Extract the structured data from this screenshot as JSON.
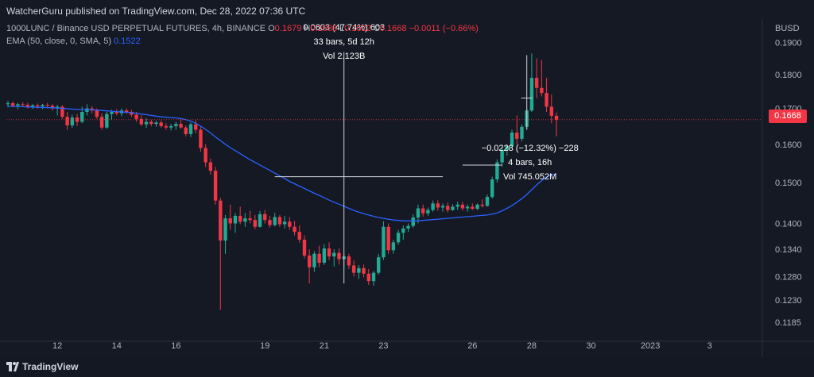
{
  "header": {
    "published": "WatcherGuru published on TradingView.com, Dec 28, 2022 07:36 UTC",
    "symbol": "1000LUNC / Binance USD PERPETUAL FUTURES, 4h, BINANCE",
    "ohlc": {
      "o_label": "O",
      "o": "0.1679",
      "h_label": "H",
      "h": "0.1688",
      "l_label": "L",
      "l": "0.1622",
      "c_label": "C",
      "c": "0.1668",
      "change": "−0.0011 (−0.66%)"
    },
    "ema_label": "EMA (50, close, 0, SMA, 5)",
    "ema_value": "0.1522",
    "currency": "BUSD"
  },
  "last_price": "0.1668",
  "colors": {
    "up": "#22ab94",
    "down": "#f23645",
    "ema": "#2962ff",
    "background": "#151924",
    "text": "#b2b5be"
  },
  "footer": {
    "brand": "TradingView",
    "logo_icon": "tradingview-logo-icon"
  },
  "measures": [
    {
      "lines": [
        "0.0603 (47.74%) 603",
        "33 bars, 5d 12h",
        "Vol 2.123B"
      ]
    },
    {
      "lines": [
        "−0.0228 (−12.32%) −228",
        "4 bars, 16h",
        "Vol 745.052M"
      ]
    }
  ],
  "chart_data": {
    "type": "candlestick",
    "timeframe": "4h",
    "x_ticks": [
      "12",
      "14",
      "16",
      "19",
      "21",
      "23",
      "26",
      "28",
      "30",
      "2023",
      "3"
    ],
    "y_ticks": [
      "0.1900",
      "0.1800",
      "0.1700",
      "0.1600",
      "0.1500",
      "0.1400",
      "0.1340",
      "0.1280",
      "0.1230",
      "0.1185"
    ],
    "y_scale": "log",
    "ylim": [
      0.1155,
      0.1935
    ],
    "grid": false,
    "candles": [
      [
        0.1712,
        0.1722,
        0.1703,
        0.1715
      ],
      [
        0.1715,
        0.172,
        0.1703,
        0.1708
      ],
      [
        0.1708,
        0.1716,
        0.1698,
        0.1712
      ],
      [
        0.1712,
        0.1718,
        0.1704,
        0.171
      ],
      [
        0.171,
        0.1716,
        0.17,
        0.1704
      ],
      [
        0.1704,
        0.1712,
        0.1698,
        0.1709
      ],
      [
        0.1709,
        0.1714,
        0.17,
        0.1706
      ],
      [
        0.1706,
        0.1713,
        0.1698,
        0.171
      ],
      [
        0.171,
        0.1716,
        0.1702,
        0.1708
      ],
      [
        0.1708,
        0.1712,
        0.1694,
        0.17
      ],
      [
        0.17,
        0.171,
        0.168,
        0.1705
      ],
      [
        0.1705,
        0.1709,
        0.167,
        0.1676
      ],
      [
        0.1676,
        0.169,
        0.164,
        0.1652
      ],
      [
        0.1652,
        0.1682,
        0.1645,
        0.1674
      ],
      [
        0.1674,
        0.1684,
        0.165,
        0.1662
      ],
      [
        0.1662,
        0.1705,
        0.1658,
        0.169
      ],
      [
        0.169,
        0.1712,
        0.168,
        0.17
      ],
      [
        0.17,
        0.1706,
        0.1686,
        0.1694
      ],
      [
        0.1694,
        0.17,
        0.167,
        0.1676
      ],
      [
        0.1676,
        0.1686,
        0.164,
        0.1646
      ],
      [
        0.1646,
        0.169,
        0.1642,
        0.1684
      ],
      [
        0.1684,
        0.1696,
        0.1668,
        0.169
      ],
      [
        0.169,
        0.1698,
        0.168,
        0.1686
      ],
      [
        0.1686,
        0.17,
        0.1678,
        0.1694
      ],
      [
        0.1694,
        0.17,
        0.1684,
        0.169
      ],
      [
        0.169,
        0.1696,
        0.1676,
        0.1682
      ],
      [
        0.1682,
        0.169,
        0.1662,
        0.167
      ],
      [
        0.167,
        0.168,
        0.165,
        0.1655
      ],
      [
        0.1655,
        0.1672,
        0.1645,
        0.1662
      ],
      [
        0.1662,
        0.1668,
        0.165,
        0.1656
      ],
      [
        0.1656,
        0.1665,
        0.1648,
        0.166
      ],
      [
        0.166,
        0.1666,
        0.1646,
        0.165
      ],
      [
        0.165,
        0.1658,
        0.164,
        0.1646
      ],
      [
        0.1646,
        0.1656,
        0.1638,
        0.165
      ],
      [
        0.165,
        0.1662,
        0.164,
        0.1656
      ],
      [
        0.1656,
        0.167,
        0.1642,
        0.1646
      ],
      [
        0.1646,
        0.1652,
        0.1622,
        0.1628
      ],
      [
        0.1628,
        0.166,
        0.162,
        0.1655
      ],
      [
        0.1655,
        0.1666,
        0.163,
        0.164
      ],
      [
        0.164,
        0.1648,
        0.158,
        0.159
      ],
      [
        0.159,
        0.16,
        0.154,
        0.1552
      ],
      [
        0.1552,
        0.1562,
        0.152,
        0.153
      ],
      [
        0.153,
        0.154,
        0.1445,
        0.1455
      ],
      [
        0.1455,
        0.1462,
        0.121,
        0.136
      ],
      [
        0.136,
        0.142,
        0.133,
        0.1412
      ],
      [
        0.1412,
        0.1445,
        0.1385,
        0.14
      ],
      [
        0.14,
        0.1425,
        0.1378,
        0.1418
      ],
      [
        0.1418,
        0.144,
        0.1398,
        0.1404
      ],
      [
        0.1404,
        0.1425,
        0.1392,
        0.1412
      ],
      [
        0.1412,
        0.143,
        0.14,
        0.1408
      ],
      [
        0.1408,
        0.142,
        0.1386,
        0.1392
      ],
      [
        0.1392,
        0.143,
        0.139,
        0.1422
      ],
      [
        0.1422,
        0.1432,
        0.14,
        0.1408
      ],
      [
        0.1408,
        0.1418,
        0.139,
        0.1396
      ],
      [
        0.1396,
        0.1425,
        0.1393,
        0.1415
      ],
      [
        0.1415,
        0.142,
        0.1392,
        0.1398
      ],
      [
        0.1398,
        0.1418,
        0.1388,
        0.1404
      ],
      [
        0.1404,
        0.1415,
        0.1385,
        0.1392
      ],
      [
        0.1392,
        0.1406,
        0.1372,
        0.138
      ],
      [
        0.138,
        0.1395,
        0.1355,
        0.1362
      ],
      [
        0.1362,
        0.1372,
        0.132,
        0.1326
      ],
      [
        0.1326,
        0.134,
        0.1265,
        0.13
      ],
      [
        0.13,
        0.1336,
        0.129,
        0.133
      ],
      [
        0.133,
        0.1348,
        0.13,
        0.131
      ],
      [
        0.131,
        0.1352,
        0.1305,
        0.1342
      ],
      [
        0.1342,
        0.1356,
        0.1316,
        0.1324
      ],
      [
        0.1324,
        0.134,
        0.1302,
        0.1332
      ],
      [
        0.1332,
        0.1342,
        0.1306,
        0.1318
      ],
      [
        0.1318,
        0.133,
        0.13,
        0.1324
      ],
      [
        0.1324,
        0.133,
        0.1296,
        0.1304
      ],
      [
        0.1304,
        0.1315,
        0.128,
        0.1288
      ],
      [
        0.1288,
        0.1305,
        0.1275,
        0.1298
      ],
      [
        0.1298,
        0.1306,
        0.1278,
        0.1286
      ],
      [
        0.1286,
        0.1296,
        0.1262,
        0.127
      ],
      [
        0.127,
        0.1292,
        0.126,
        0.1288
      ],
      [
        0.1288,
        0.133,
        0.1284,
        0.1322
      ],
      [
        0.1322,
        0.1405,
        0.1316,
        0.1392
      ],
      [
        0.1392,
        0.14,
        0.133,
        0.1338
      ],
      [
        0.1338,
        0.1362,
        0.133,
        0.1356
      ],
      [
        0.1356,
        0.1385,
        0.135,
        0.1378
      ],
      [
        0.1378,
        0.1395,
        0.1362,
        0.1388
      ],
      [
        0.1388,
        0.14,
        0.138,
        0.1394
      ],
      [
        0.1394,
        0.1422,
        0.139,
        0.1414
      ],
      [
        0.1414,
        0.1445,
        0.14,
        0.1436
      ],
      [
        0.1436,
        0.1445,
        0.1416,
        0.1424
      ],
      [
        0.1424,
        0.1438,
        0.1418,
        0.1432
      ],
      [
        0.1432,
        0.1455,
        0.1428,
        0.1448
      ],
      [
        0.1448,
        0.1456,
        0.143,
        0.1438
      ],
      [
        0.1438,
        0.1448,
        0.1428,
        0.1442
      ],
      [
        0.1442,
        0.145,
        0.1426,
        0.1432
      ],
      [
        0.1432,
        0.1446,
        0.143,
        0.144
      ],
      [
        0.144,
        0.1452,
        0.1432,
        0.1445
      ],
      [
        0.1445,
        0.1452,
        0.143,
        0.1436
      ],
      [
        0.1436,
        0.1446,
        0.1428,
        0.144
      ],
      [
        0.144,
        0.1448,
        0.1432,
        0.1435
      ],
      [
        0.1435,
        0.1448,
        0.1432,
        0.1445
      ],
      [
        0.1445,
        0.1458,
        0.1438,
        0.1442
      ],
      [
        0.1442,
        0.147,
        0.144,
        0.1464
      ],
      [
        0.1464,
        0.1515,
        0.146,
        0.1508
      ],
      [
        0.1508,
        0.156,
        0.15,
        0.1552
      ],
      [
        0.1552,
        0.1592,
        0.154,
        0.1585
      ],
      [
        0.1585,
        0.16,
        0.157,
        0.1595
      ],
      [
        0.1595,
        0.164,
        0.159,
        0.1632
      ],
      [
        0.1632,
        0.168,
        0.16,
        0.1615
      ],
      [
        0.1615,
        0.1655,
        0.1608,
        0.1648
      ],
      [
        0.1648,
        0.17,
        0.164,
        0.1694
      ],
      [
        0.1694,
        0.1865,
        0.169,
        0.179
      ],
      [
        0.179,
        0.185,
        0.173,
        0.176
      ],
      [
        0.176,
        0.1845,
        0.1735,
        0.1745
      ],
      [
        0.1745,
        0.179,
        0.169,
        0.1705
      ],
      [
        0.1705,
        0.174,
        0.1658,
        0.1679
      ],
      [
        0.1679,
        0.1688,
        0.1622,
        0.1668
      ]
    ],
    "ema": [
      0.1706,
      0.1706,
      0.1705,
      0.1705,
      0.1704,
      0.1704,
      0.1703,
      0.1703,
      0.1702,
      0.1702,
      0.1701,
      0.17,
      0.1699,
      0.1698,
      0.1697,
      0.1697,
      0.1696,
      0.1696,
      0.1695,
      0.1694,
      0.1693,
      0.1692,
      0.1691,
      0.169,
      0.1689,
      0.1688,
      0.1686,
      0.1684,
      0.1682,
      0.168,
      0.1678,
      0.1676,
      0.1675,
      0.1674,
      0.1673,
      0.1671,
      0.1668,
      0.1664,
      0.1658,
      0.165,
      0.1641,
      0.1631,
      0.162,
      0.161,
      0.16,
      0.1591,
      0.1583,
      0.1575,
      0.1567,
      0.1559,
      0.1552,
      0.1545,
      0.1538,
      0.1531,
      0.1524,
      0.1517,
      0.151,
      0.1503,
      0.1497,
      0.1491,
      0.1485,
      0.1479,
      0.1473,
      0.1468,
      0.1462,
      0.1456,
      0.1451,
      0.1446,
      0.1441,
      0.1436,
      0.1431,
      0.1427,
      0.1423,
      0.142,
      0.1417,
      0.1414,
      0.1412,
      0.141,
      0.1408,
      0.1407,
      0.1406,
      0.1406,
      0.1406,
      0.1406,
      0.1407,
      0.1408,
      0.1409,
      0.141,
      0.1411,
      0.1412,
      0.1413,
      0.1414,
      0.1415,
      0.1416,
      0.1417,
      0.1418,
      0.1419,
      0.142,
      0.1422,
      0.1425,
      0.143,
      0.1436,
      0.1443,
      0.1451,
      0.146,
      0.147,
      0.1482,
      0.1494,
      0.1505,
      0.1514,
      0.152,
      0.1522
    ]
  }
}
